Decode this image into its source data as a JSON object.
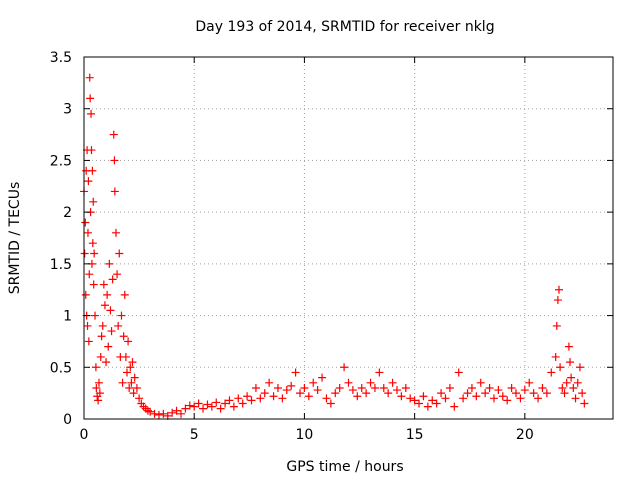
{
  "chart_data": {
    "type": "scatter",
    "title": "Day 193 of 2014, SRMTID for receiver nklg",
    "xlabel": "GPS time / hours",
    "ylabel": "SRMTID / TECUs",
    "xlim": [
      0,
      24
    ],
    "ylim": [
      0,
      3.5
    ],
    "xticks": [
      0,
      5,
      10,
      15,
      20
    ],
    "xtick_labels": [
      "0",
      "5",
      "10",
      "15",
      "20"
    ],
    "yticks": [
      0,
      0.5,
      1,
      1.5,
      2,
      2.5,
      3,
      3.5
    ],
    "ytick_labels": [
      "0",
      "0.5",
      "1",
      "1.5",
      "2",
      "2.5",
      "3",
      "3.5"
    ],
    "grid": true,
    "marker": "+",
    "color": "#ff0000",
    "series": [
      {
        "name": "SRMTID",
        "points": [
          [
            0.0,
            2.2
          ],
          [
            0.03,
            1.6
          ],
          [
            0.06,
            1.9
          ],
          [
            0.08,
            1.2
          ],
          [
            0.1,
            2.4
          ],
          [
            0.12,
            1.0
          ],
          [
            0.14,
            2.6
          ],
          [
            0.16,
            0.9
          ],
          [
            0.18,
            1.8
          ],
          [
            0.2,
            2.3
          ],
          [
            0.22,
            0.75
          ],
          [
            0.24,
            1.4
          ],
          [
            0.26,
            3.3
          ],
          [
            0.28,
            3.1
          ],
          [
            0.3,
            2.0
          ],
          [
            0.32,
            2.95
          ],
          [
            0.34,
            2.6
          ],
          [
            0.36,
            1.5
          ],
          [
            0.38,
            2.4
          ],
          [
            0.4,
            1.7
          ],
          [
            0.42,
            2.1
          ],
          [
            0.44,
            1.3
          ],
          [
            0.46,
            1.6
          ],
          [
            0.5,
            1.0
          ],
          [
            0.54,
            0.5
          ],
          [
            0.56,
            0.3
          ],
          [
            0.6,
            0.22
          ],
          [
            0.64,
            0.18
          ],
          [
            0.68,
            0.35
          ],
          [
            0.72,
            0.25
          ],
          [
            0.76,
            0.6
          ],
          [
            0.8,
            0.8
          ],
          [
            0.85,
            0.9
          ],
          [
            0.9,
            1.3
          ],
          [
            0.95,
            1.1
          ],
          [
            1.0,
            0.55
          ],
          [
            1.05,
            1.2
          ],
          [
            1.1,
            0.7
          ],
          [
            1.15,
            1.5
          ],
          [
            1.2,
            1.05
          ],
          [
            1.25,
            0.85
          ],
          [
            1.3,
            1.35
          ],
          [
            1.35,
            2.75
          ],
          [
            1.38,
            2.5
          ],
          [
            1.4,
            2.2
          ],
          [
            1.45,
            1.8
          ],
          [
            1.5,
            1.4
          ],
          [
            1.55,
            0.9
          ],
          [
            1.6,
            1.6
          ],
          [
            1.65,
            0.6
          ],
          [
            1.7,
            1.0
          ],
          [
            1.75,
            0.35
          ],
          [
            1.8,
            0.8
          ],
          [
            1.85,
            1.2
          ],
          [
            1.9,
            0.6
          ],
          [
            1.95,
            0.45
          ],
          [
            2.0,
            0.75
          ],
          [
            2.05,
            0.3
          ],
          [
            2.1,
            0.5
          ],
          [
            2.15,
            0.35
          ],
          [
            2.2,
            0.55
          ],
          [
            2.25,
            0.25
          ],
          [
            2.3,
            0.4
          ],
          [
            2.4,
            0.3
          ],
          [
            2.5,
            0.2
          ],
          [
            2.6,
            0.15
          ],
          [
            2.7,
            0.12
          ],
          [
            2.8,
            0.1
          ],
          [
            2.9,
            0.08
          ],
          [
            3.0,
            0.07
          ],
          [
            3.2,
            0.05
          ],
          [
            3.4,
            0.04
          ],
          [
            3.6,
            0.05
          ],
          [
            3.8,
            0.03
          ],
          [
            4.0,
            0.06
          ],
          [
            4.2,
            0.08
          ],
          [
            4.4,
            0.05
          ],
          [
            4.6,
            0.1
          ],
          [
            4.8,
            0.13
          ],
          [
            5.0,
            0.12
          ],
          [
            5.2,
            0.15
          ],
          [
            5.4,
            0.1
          ],
          [
            5.6,
            0.14
          ],
          [
            5.8,
            0.12
          ],
          [
            6.0,
            0.16
          ],
          [
            6.2,
            0.1
          ],
          [
            6.4,
            0.15
          ],
          [
            6.6,
            0.18
          ],
          [
            6.8,
            0.12
          ],
          [
            7.0,
            0.2
          ],
          [
            7.2,
            0.15
          ],
          [
            7.4,
            0.22
          ],
          [
            7.6,
            0.18
          ],
          [
            7.8,
            0.3
          ],
          [
            8.0,
            0.2
          ],
          [
            8.2,
            0.25
          ],
          [
            8.4,
            0.35
          ],
          [
            8.6,
            0.22
          ],
          [
            8.8,
            0.3
          ],
          [
            9.0,
            0.2
          ],
          [
            9.2,
            0.28
          ],
          [
            9.4,
            0.32
          ],
          [
            9.6,
            0.45
          ],
          [
            9.8,
            0.25
          ],
          [
            10.0,
            0.3
          ],
          [
            10.2,
            0.22
          ],
          [
            10.4,
            0.35
          ],
          [
            10.6,
            0.28
          ],
          [
            10.8,
            0.4
          ],
          [
            11.0,
            0.2
          ],
          [
            11.2,
            0.15
          ],
          [
            11.4,
            0.25
          ],
          [
            11.6,
            0.3
          ],
          [
            11.8,
            0.5
          ],
          [
            12.0,
            0.35
          ],
          [
            12.2,
            0.28
          ],
          [
            12.4,
            0.22
          ],
          [
            12.6,
            0.3
          ],
          [
            12.8,
            0.25
          ],
          [
            13.0,
            0.35
          ],
          [
            13.2,
            0.3
          ],
          [
            13.4,
            0.45
          ],
          [
            13.6,
            0.3
          ],
          [
            13.8,
            0.25
          ],
          [
            14.0,
            0.35
          ],
          [
            14.2,
            0.28
          ],
          [
            14.4,
            0.22
          ],
          [
            14.6,
            0.3
          ],
          [
            14.8,
            0.2
          ],
          [
            15.0,
            0.18
          ],
          [
            15.2,
            0.15
          ],
          [
            15.4,
            0.22
          ],
          [
            15.6,
            0.12
          ],
          [
            15.8,
            0.18
          ],
          [
            16.0,
            0.15
          ],
          [
            16.2,
            0.25
          ],
          [
            16.4,
            0.2
          ],
          [
            16.6,
            0.3
          ],
          [
            16.8,
            0.12
          ],
          [
            17.0,
            0.45
          ],
          [
            17.2,
            0.2
          ],
          [
            17.4,
            0.25
          ],
          [
            17.6,
            0.3
          ],
          [
            17.8,
            0.22
          ],
          [
            18.0,
            0.35
          ],
          [
            18.2,
            0.25
          ],
          [
            18.4,
            0.3
          ],
          [
            18.6,
            0.2
          ],
          [
            18.8,
            0.28
          ],
          [
            19.0,
            0.22
          ],
          [
            19.2,
            0.18
          ],
          [
            19.4,
            0.3
          ],
          [
            19.6,
            0.25
          ],
          [
            19.8,
            0.2
          ],
          [
            20.0,
            0.28
          ],
          [
            20.2,
            0.35
          ],
          [
            20.4,
            0.25
          ],
          [
            20.6,
            0.2
          ],
          [
            20.8,
            0.3
          ],
          [
            21.0,
            0.25
          ],
          [
            21.2,
            0.45
          ],
          [
            21.4,
            0.6
          ],
          [
            21.45,
            0.9
          ],
          [
            21.5,
            1.15
          ],
          [
            21.55,
            1.25
          ],
          [
            21.6,
            0.5
          ],
          [
            21.7,
            0.3
          ],
          [
            21.8,
            0.25
          ],
          [
            21.9,
            0.35
          ],
          [
            22.0,
            0.7
          ],
          [
            22.05,
            0.55
          ],
          [
            22.1,
            0.4
          ],
          [
            22.2,
            0.3
          ],
          [
            22.3,
            0.2
          ],
          [
            22.4,
            0.35
          ],
          [
            22.5,
            0.5
          ],
          [
            22.6,
            0.25
          ],
          [
            22.7,
            0.15
          ]
        ]
      }
    ]
  }
}
